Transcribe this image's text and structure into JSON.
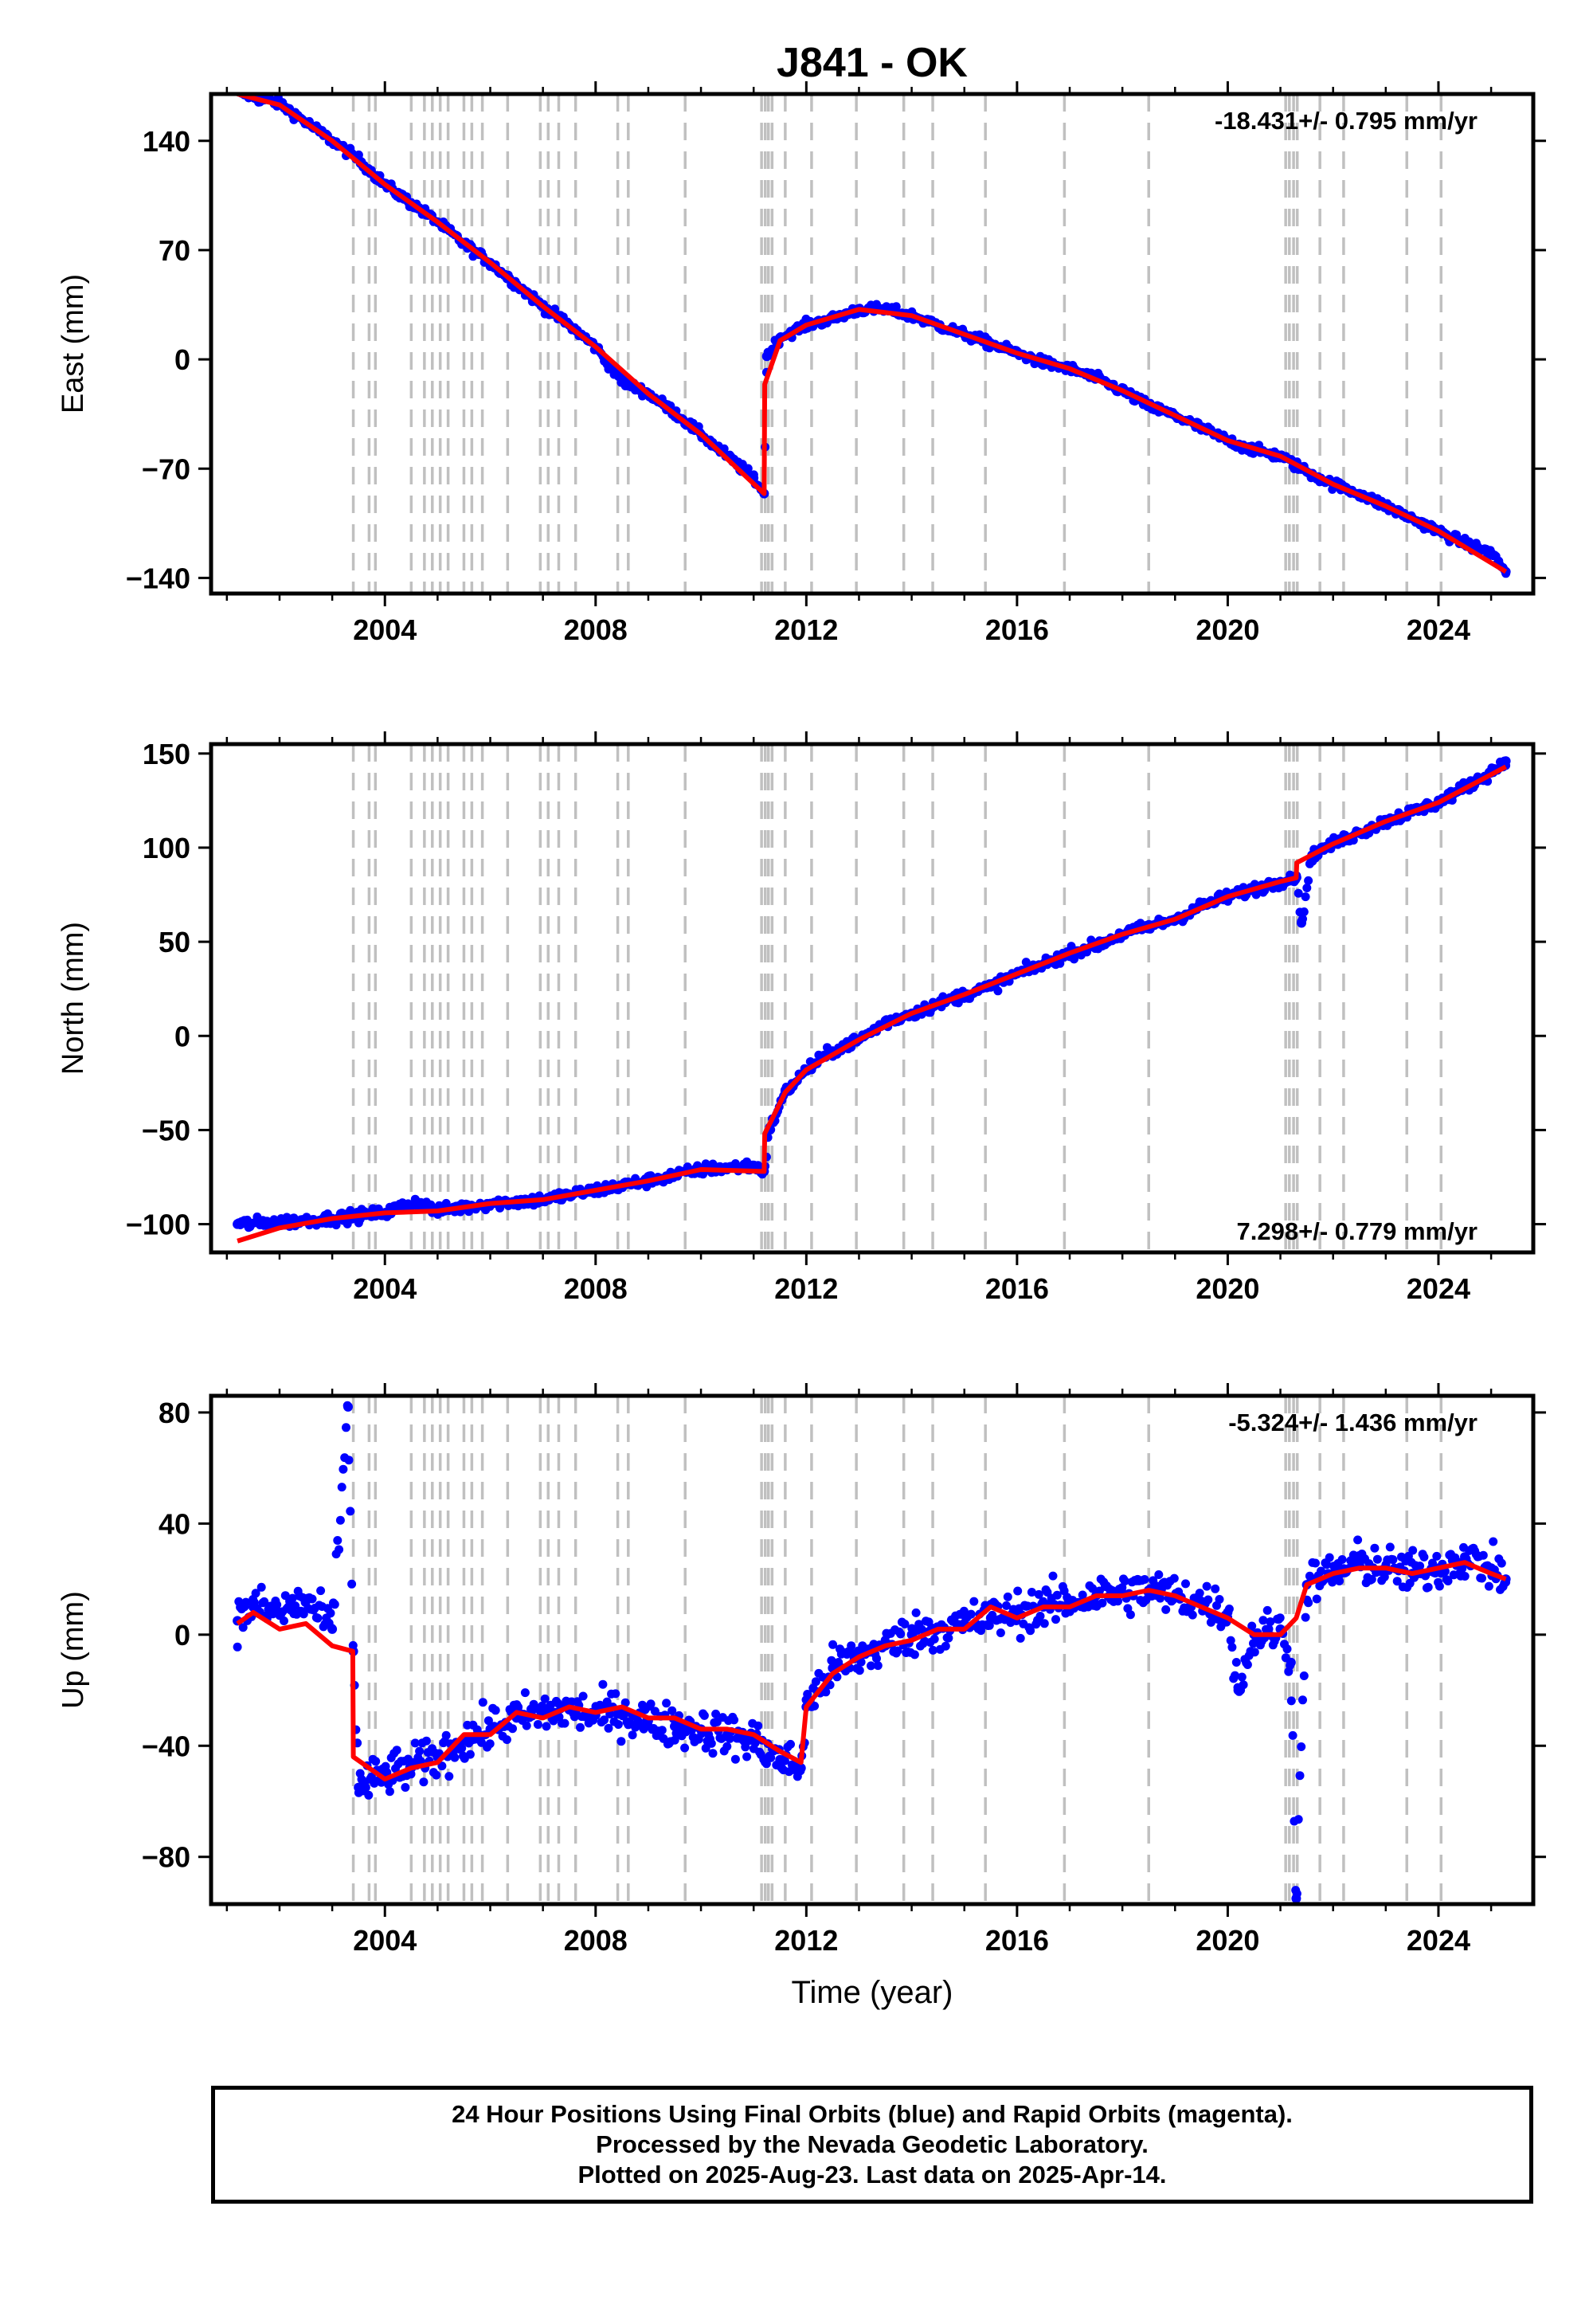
{
  "figure": {
    "title": "J841 - OK",
    "footer_lines": [
      "24 Hour Positions Using Final Orbits (blue) and Rapid Orbits (magenta).",
      "Processed by the Nevada Geodetic Laboratory.",
      "Plotted on 2025-Aug-23. Last data on 2025-Apr-14."
    ],
    "colors": {
      "points": "#0000ff",
      "model": "#ff0000",
      "steps": "#c0c0c0",
      "axes": "#000000"
    }
  },
  "chart_data": [
    {
      "type": "scatter",
      "panel": "east",
      "title": "J841 - OK",
      "xlabel": "",
      "ylabel": "East (mm)",
      "xlim": [
        2000.7,
        2025.8
      ],
      "ylim": [
        -150,
        170
      ],
      "xticks": [
        2004,
        2008,
        2012,
        2016,
        2020,
        2024
      ],
      "yticks": [
        -140,
        -70,
        0,
        70,
        140
      ],
      "rate_label": "-18.431+/- 0.795 mm/yr",
      "rate_position": "top-right",
      "grid": false,
      "series": [
        {
          "role": "points",
          "x": [
            2001.2,
            2001.5,
            2002.0,
            2002.5,
            2003.0,
            2003.5,
            2004.0,
            2004.5,
            2005.0,
            2005.5,
            2006.0,
            2006.5,
            2007.0,
            2007.5,
            2008.0,
            2008.5,
            2009.0,
            2009.5,
            2010.0,
            2010.5,
            2011.0,
            2011.2,
            2011.25,
            2011.5,
            2012.0,
            2012.5,
            2013.0,
            2013.5,
            2014.0,
            2014.5,
            2015.0,
            2015.5,
            2016.0,
            2016.5,
            2017.0,
            2017.5,
            2018.0,
            2018.5,
            2019.0,
            2019.5,
            2020.0,
            2020.5,
            2021.0,
            2021.3,
            2021.5,
            2022.0,
            2022.5,
            2023.0,
            2023.5,
            2024.0,
            2024.5,
            2025.0,
            2025.28
          ],
          "y": [
            172,
            168,
            164,
            152,
            140,
            128,
            112,
            100,
            88,
            74,
            62,
            48,
            34,
            22,
            8,
            -14,
            -22,
            -34,
            -48,
            -62,
            -76,
            -86,
            2,
            14,
            22,
            26,
            32,
            32,
            28,
            22,
            16,
            10,
            4,
            -2,
            -6,
            -12,
            -20,
            -30,
            -36,
            -44,
            -52,
            -58,
            -62,
            -68,
            -72,
            -80,
            -86,
            -94,
            -102,
            -110,
            -118,
            -124,
            -136
          ]
        },
        {
          "role": "model",
          "x": [
            2001.2,
            2002.0,
            2003.0,
            2004.0,
            2005.0,
            2006.0,
            2007.0,
            2008.0,
            2009.0,
            2010.0,
            2011.2,
            2011.21,
            2011.5,
            2012.0,
            2013.0,
            2014.0,
            2015.0,
            2016.0,
            2017.0,
            2018.0,
            2019.0,
            2020.0,
            2021.0,
            2022.0,
            2023.0,
            2024.0,
            2025.28
          ],
          "y": [
            170,
            163,
            140,
            112,
            88,
            62,
            34,
            8,
            -22,
            -48,
            -86,
            -16,
            12,
            22,
            32,
            28,
            16,
            4,
            -6,
            -20,
            -36,
            -52,
            -62,
            -80,
            -94,
            -110,
            -136
          ]
        }
      ]
    },
    {
      "type": "scatter",
      "panel": "north",
      "xlabel": "",
      "ylabel": "North (mm)",
      "xlim": [
        2000.7,
        2025.8
      ],
      "ylim": [
        -115,
        155
      ],
      "xticks": [
        2004,
        2008,
        2012,
        2016,
        2020,
        2024
      ],
      "yticks": [
        -100,
        -50,
        0,
        50,
        100,
        150
      ],
      "rate_label": "7.298+/- 0.779 mm/yr",
      "rate_position": "bottom-right",
      "grid": false,
      "series": [
        {
          "role": "points",
          "x": [
            2001.2,
            2002.0,
            2003.0,
            2004.0,
            2004.6,
            2005.0,
            2006.0,
            2007.0,
            2008.0,
            2009.0,
            2010.0,
            2011.0,
            2011.2,
            2011.3,
            2011.6,
            2012.0,
            2012.5,
            2013.0,
            2013.5,
            2014.0,
            2014.5,
            2015.0,
            2015.5,
            2016.0,
            2016.5,
            2017.0,
            2017.5,
            2018.0,
            2018.5,
            2019.0,
            2019.5,
            2020.0,
            2020.5,
            2021.0,
            2021.3,
            2021.4,
            2021.6,
            2022.0,
            2022.5,
            2023.0,
            2023.5,
            2024.0,
            2024.5,
            2025.0,
            2025.28
          ],
          "y": [
            -100,
            -99,
            -97,
            -94,
            -88,
            -93,
            -89,
            -87,
            -82,
            -77,
            -71,
            -69,
            -72,
            -50,
            -30,
            -18,
            -8,
            -2,
            7,
            12,
            17,
            22,
            26,
            33,
            38,
            44,
            48,
            54,
            58,
            62,
            69,
            74,
            78,
            82,
            85,
            60,
            96,
            102,
            108,
            114,
            119,
            124,
            132,
            140,
            146
          ]
        },
        {
          "role": "model",
          "x": [
            2001.2,
            2002.0,
            2003.0,
            2004.0,
            2005.0,
            2006.0,
            2007.0,
            2008.0,
            2009.0,
            2010.0,
            2011.2,
            2011.21,
            2011.6,
            2012.0,
            2013.0,
            2014.0,
            2015.0,
            2016.0,
            2017.0,
            2018.0,
            2019.0,
            2020.0,
            2021.0,
            2021.3,
            2021.31,
            2022.0,
            2023.0,
            2024.0,
            2025.28
          ],
          "y": [
            -109,
            -102,
            -97,
            -94,
            -93,
            -89,
            -87,
            -82,
            -77,
            -71,
            -72,
            -52,
            -30,
            -18,
            -2,
            12,
            22,
            33,
            44,
            54,
            62,
            74,
            82,
            84,
            92,
            102,
            114,
            124,
            143
          ]
        }
      ]
    },
    {
      "type": "scatter",
      "panel": "up",
      "xlabel": "Time (year)",
      "ylabel": "Up (mm)",
      "xlim": [
        2000.7,
        2025.8
      ],
      "ylim": [
        -97,
        86
      ],
      "xticks": [
        2004,
        2008,
        2012,
        2016,
        2020,
        2024
      ],
      "yticks": [
        -80,
        -40,
        0,
        40,
        80
      ],
      "rate_label": "-5.324+/- 1.436 mm/yr",
      "rate_position": "top-right",
      "grid": false,
      "series": [
        {
          "role": "points",
          "x": [
            2001.2,
            2001.5,
            2002.0,
            2002.5,
            2003.0,
            2003.3,
            2003.4,
            2003.5,
            2004.0,
            2004.5,
            2005.0,
            2005.5,
            2006.0,
            2006.5,
            2007.0,
            2007.5,
            2008.0,
            2008.5,
            2009.0,
            2009.5,
            2010.0,
            2010.5,
            2011.0,
            2011.5,
            2011.9,
            2012.0,
            2012.5,
            2013.0,
            2013.5,
            2014.0,
            2014.5,
            2015.0,
            2015.5,
            2016.0,
            2016.5,
            2017.0,
            2017.5,
            2018.0,
            2018.5,
            2019.0,
            2019.5,
            2020.0,
            2020.2,
            2020.5,
            2021.0,
            2021.2,
            2021.3,
            2021.5,
            2022.0,
            2022.5,
            2023.0,
            2023.5,
            2024.0,
            2024.5,
            2025.0,
            2025.28
          ],
          "y": [
            5,
            10,
            8,
            12,
            2,
            82,
            -6,
            -55,
            -50,
            -48,
            -44,
            -38,
            -34,
            -30,
            -28,
            -27,
            -29,
            -28,
            -31,
            -33,
            -34,
            -36,
            -38,
            -45,
            -48,
            -26,
            -12,
            -8,
            -4,
            0,
            2,
            4,
            6,
            8,
            10,
            12,
            14,
            15,
            16,
            14,
            12,
            8,
            -20,
            0,
            2,
            -10,
            -95,
            18,
            22,
            26,
            24,
            22,
            24,
            28,
            24,
            20
          ]
        },
        {
          "role": "model",
          "x": [
            2001.2,
            2001.5,
            2002.0,
            2002.5,
            2003.0,
            2003.39,
            2003.4,
            2004.0,
            2004.5,
            2005.0,
            2005.5,
            2006.0,
            2006.5,
            2007.0,
            2007.5,
            2008.0,
            2008.5,
            2009.0,
            2009.5,
            2010.0,
            2010.5,
            2011.0,
            2011.5,
            2011.9,
            2012.0,
            2012.5,
            2013.0,
            2013.5,
            2014.0,
            2014.5,
            2015.0,
            2015.5,
            2016.0,
            2016.5,
            2017.0,
            2017.5,
            2018.0,
            2018.5,
            2019.0,
            2019.5,
            2020.0,
            2020.5,
            2021.0,
            2021.3,
            2021.5,
            2022.0,
            2022.5,
            2023.0,
            2023.5,
            2024.0,
            2024.5,
            2025.0,
            2025.28
          ],
          "y": [
            4,
            8,
            2,
            4,
            -4,
            -6,
            -44,
            -52,
            -48,
            -46,
            -36,
            -36,
            -28,
            -30,
            -26,
            -28,
            -26,
            -30,
            -30,
            -34,
            -34,
            -36,
            -42,
            -46,
            -26,
            -14,
            -8,
            -4,
            -2,
            2,
            2,
            10,
            6,
            10,
            10,
            14,
            14,
            16,
            14,
            10,
            6,
            0,
            0,
            6,
            18,
            22,
            24,
            24,
            22,
            24,
            26,
            22,
            20
          ]
        }
      ]
    }
  ],
  "equipment_steps": [
    2003.4,
    2003.7,
    2003.82,
    2004.5,
    2004.75,
    2004.9,
    2005.05,
    2005.2,
    2005.5,
    2005.65,
    2005.85,
    2006.33,
    2006.95,
    2007.1,
    2007.3,
    2007.62,
    2008.42,
    2008.62,
    2009.7,
    2011.15,
    2011.22,
    2011.28,
    2011.35,
    2011.6,
    2012.1,
    2012.95,
    2013.85,
    2014.4,
    2015.4,
    2016.9,
    2018.5,
    2021.1,
    2021.17,
    2021.25,
    2021.32,
    2021.75,
    2022.2,
    2023.4,
    2024.05
  ]
}
